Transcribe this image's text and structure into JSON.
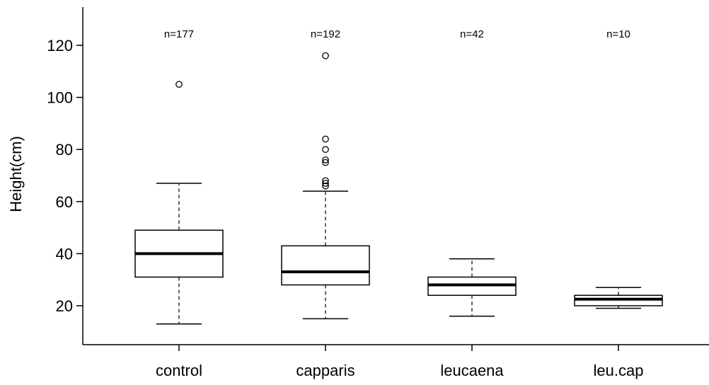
{
  "chart_data": {
    "type": "boxplot",
    "title": "",
    "xlabel": "",
    "ylabel": "Height(cm)",
    "ylim": [
      5,
      135
    ],
    "yticks": [
      20,
      40,
      60,
      80,
      100,
      120
    ],
    "ytick_labels": [
      "20",
      "40",
      "60",
      "80",
      "100",
      "120"
    ],
    "grid": false,
    "categories": [
      "control",
      "capparis",
      "leucaena",
      "leu.cap"
    ],
    "n_labels": [
      "n=177",
      "n=192",
      "n=42",
      "n=10"
    ],
    "boxes": [
      {
        "category": "control",
        "whisker_low": 13,
        "q1": 31,
        "median": 40,
        "q3": 49,
        "whisker_high": 67,
        "outliers": [
          105
        ]
      },
      {
        "category": "capparis",
        "whisker_low": 15,
        "q1": 28,
        "median": 33,
        "q3": 43,
        "whisker_high": 64,
        "outliers": [
          66,
          67,
          68,
          75,
          76,
          80,
          84,
          116
        ]
      },
      {
        "category": "leucaena",
        "whisker_low": 16,
        "q1": 24,
        "median": 28,
        "q3": 31,
        "whisker_high": 38,
        "outliers": []
      },
      {
        "category": "leu.cap",
        "whisker_low": 19,
        "q1": 20,
        "median": 22.5,
        "q3": 24,
        "whisker_high": 27,
        "outliers": []
      }
    ]
  }
}
